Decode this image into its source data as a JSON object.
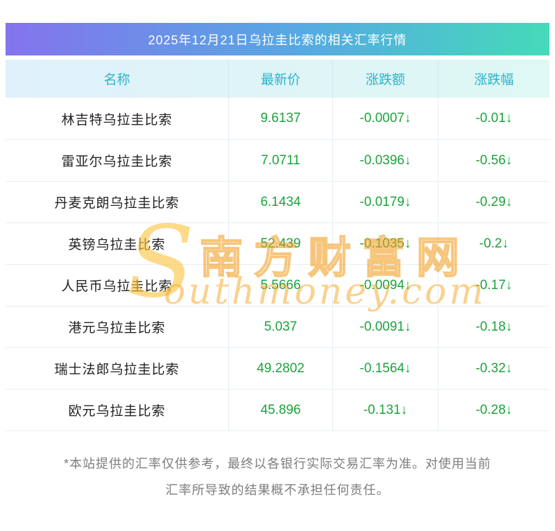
{
  "chart_data": {
    "type": "table",
    "title": "2025年12月21日乌拉圭比索的相关汇率行情",
    "columns": [
      "名称",
      "最新价",
      "涨跌额",
      "涨跌幅"
    ],
    "rows": [
      {
        "name": "林吉特乌拉圭比索",
        "price": "9.6137",
        "change": "-0.0007↓",
        "percent": "-0.01↓"
      },
      {
        "name": "雷亚尔乌拉圭比索",
        "price": "7.0711",
        "change": "-0.0396↓",
        "percent": "-0.56↓"
      },
      {
        "name": "丹麦克朗乌拉圭比索",
        "price": "6.1434",
        "change": "-0.0179↓",
        "percent": "-0.29↓"
      },
      {
        "name": "英镑乌拉圭比索",
        "price": "52.439",
        "change": "-0.1035↓",
        "percent": "-0.2↓"
      },
      {
        "name": "人民币乌拉圭比索",
        "price": "5.5666",
        "change": "-0.0094↓",
        "percent": "-0.17↓"
      },
      {
        "name": "港元乌拉圭比索",
        "price": "5.037",
        "change": "-0.0091↓",
        "percent": "-0.18↓"
      },
      {
        "name": "瑞士法郎乌拉圭比索",
        "price": "49.2802",
        "change": "-0.1564↓",
        "percent": "-0.32↓"
      },
      {
        "name": "欧元乌拉圭比索",
        "price": "45.896",
        "change": "-0.131↓",
        "percent": "-0.28↓"
      }
    ]
  },
  "watermark": {
    "logo": "S",
    "cn": "南方财富网",
    "en": "outhmoney.com"
  },
  "footer": {
    "line1": "*本站提供的汇率仅供参考，最终以各银行实际交易汇率为准。对使用当前",
    "line2": "汇率所导致的结果概不承担任何责任。"
  },
  "colors": {
    "banner_gradient_start": "#8473ee",
    "banner_gradient_end": "#45dab9",
    "table_header_text": "#2bb3cd",
    "value_green": "#1ca23c",
    "watermark_orange": "#f5a623",
    "footer_gray": "#7d7d7d"
  }
}
